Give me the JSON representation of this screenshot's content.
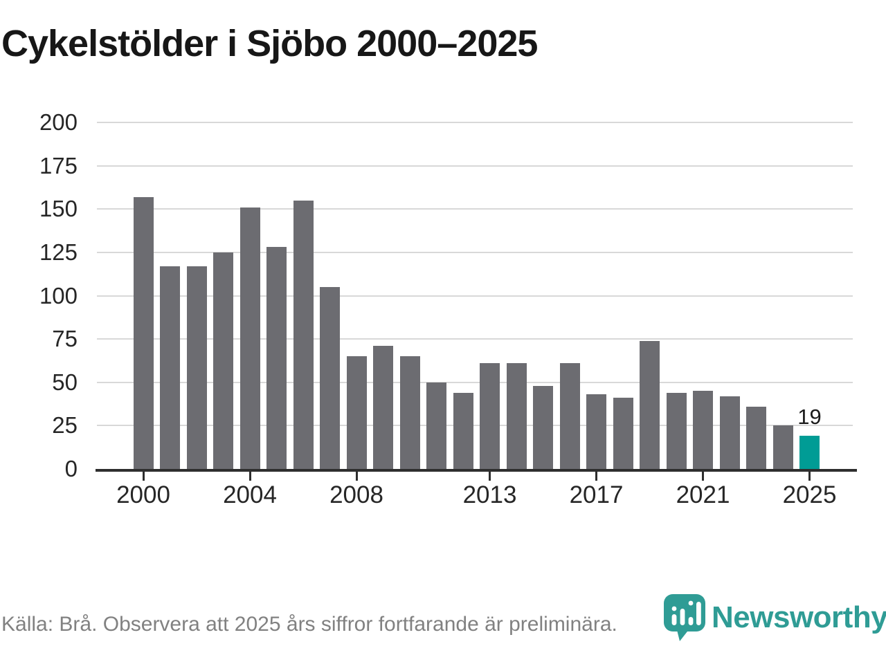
{
  "title": "Cykelstölder i Sjöbo 2000–2025",
  "source_note": "Källa: Brå. Observera att 2025 års siffror fortfarande är preliminära.",
  "branding": {
    "name": "Newsworthy"
  },
  "colors": {
    "bar": "#6c6c71",
    "highlight": "#009c95",
    "logo_teal": "#2f9c95",
    "grid": "#d8d8d8",
    "axis": "#2e2e2e",
    "tick_label": "#262626",
    "title_text": "#171717",
    "source_text": "#818181",
    "annotation": "#1b1b1b"
  },
  "chart_data": {
    "type": "bar",
    "title": "Cykelstölder i Sjöbo 2000–2025",
    "xlabel": "",
    "ylabel": "",
    "x": [
      2000,
      2001,
      2002,
      2003,
      2004,
      2005,
      2006,
      2007,
      2008,
      2009,
      2010,
      2011,
      2012,
      2013,
      2014,
      2015,
      2016,
      2017,
      2018,
      2019,
      2020,
      2021,
      2022,
      2023,
      2024,
      2025
    ],
    "values": [
      157,
      117,
      117,
      125,
      151,
      128,
      155,
      105,
      65,
      71,
      65,
      50,
      44,
      61,
      61,
      48,
      61,
      43,
      41,
      74,
      44,
      45,
      42,
      36,
      25,
      19
    ],
    "highlight_year": 2025,
    "highlight_label": "19",
    "y_ticks": [
      0,
      25,
      50,
      75,
      100,
      125,
      150,
      175,
      200
    ],
    "x_ticks": [
      2000,
      2004,
      2008,
      2013,
      2017,
      2021,
      2025
    ],
    "ylim": [
      0,
      200
    ],
    "grid": true,
    "legend_position": "none",
    "note": "Preliminary figure for 2025 shown in teal"
  }
}
